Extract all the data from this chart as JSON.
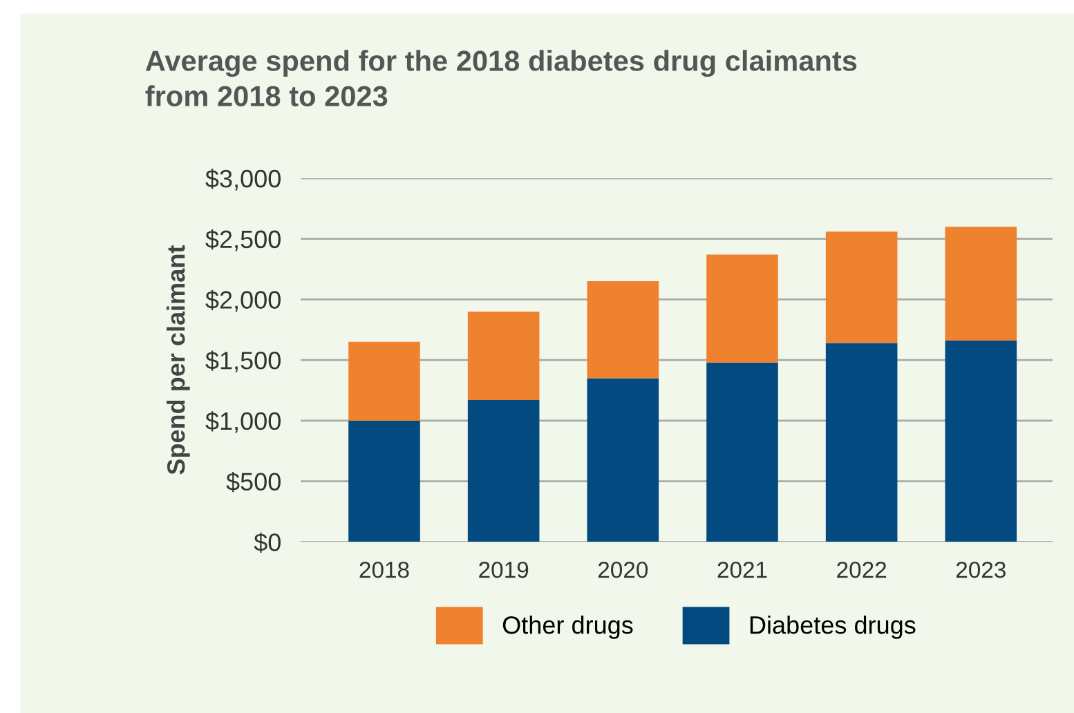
{
  "chart_data": {
    "type": "bar",
    "title": "Average spend for the 2018 diabetes drug claimants\nfrom 2018 to 2023",
    "ylabel": "Spend per claimant",
    "categories": [
      "2018",
      "2019",
      "2020",
      "2021",
      "2022",
      "2023"
    ],
    "stacked": true,
    "series": [
      {
        "name": "Diabetes drugs",
        "color": "#034a80",
        "values": [
          1000,
          1170,
          1350,
          1480,
          1640,
          1660
        ]
      },
      {
        "name": "Other drugs",
        "color": "#ee822e",
        "values": [
          650,
          730,
          800,
          890,
          920,
          940
        ]
      }
    ],
    "ylim": [
      0,
      3000
    ],
    "yticks": [
      {
        "value": 0,
        "label": "$0"
      },
      {
        "value": 500,
        "label": "$500"
      },
      {
        "value": 1000,
        "label": "$1,000"
      },
      {
        "value": 1500,
        "label": "$1,500"
      },
      {
        "value": 2000,
        "label": "$2,000"
      },
      {
        "value": 2500,
        "label": "$2,500"
      },
      {
        "value": 3000,
        "label": "$3,000"
      }
    ],
    "grid": "y",
    "legend": "bottom"
  }
}
